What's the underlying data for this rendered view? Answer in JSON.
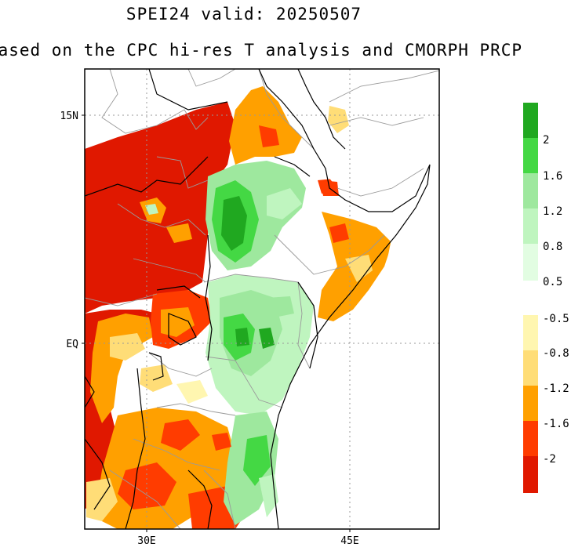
{
  "title": "SPEI24   valid: 20250507",
  "subtitle": "based on the CPC hi-res T analysis and CMORPH PRCP",
  "map": {
    "latitude_ticks": [
      "15N",
      "EQ"
    ],
    "longitude_ticks": [
      "30E",
      "45E"
    ],
    "gridlines": "dotted"
  },
  "legend": {
    "positive": [
      {
        "label": "2",
        "color": "#20a820"
      },
      {
        "label": "1.6",
        "color": "#44d844"
      },
      {
        "label": "1.2",
        "color": "#9ee89e"
      },
      {
        "label": "0.8",
        "color": "#bff5bf"
      },
      {
        "label": "0.5",
        "color": "#e2fde2"
      }
    ],
    "top_color": "#20a820",
    "negative": [
      {
        "label": "-0.5",
        "color": "#fff6b0"
      },
      {
        "label": "-0.8",
        "color": "#ffdd77"
      },
      {
        "label": "-1.2",
        "color": "#ffa000"
      },
      {
        "label": "-1.6",
        "color": "#ff3c00"
      },
      {
        "label": "-2",
        "color": "#e01800"
      }
    ]
  }
}
